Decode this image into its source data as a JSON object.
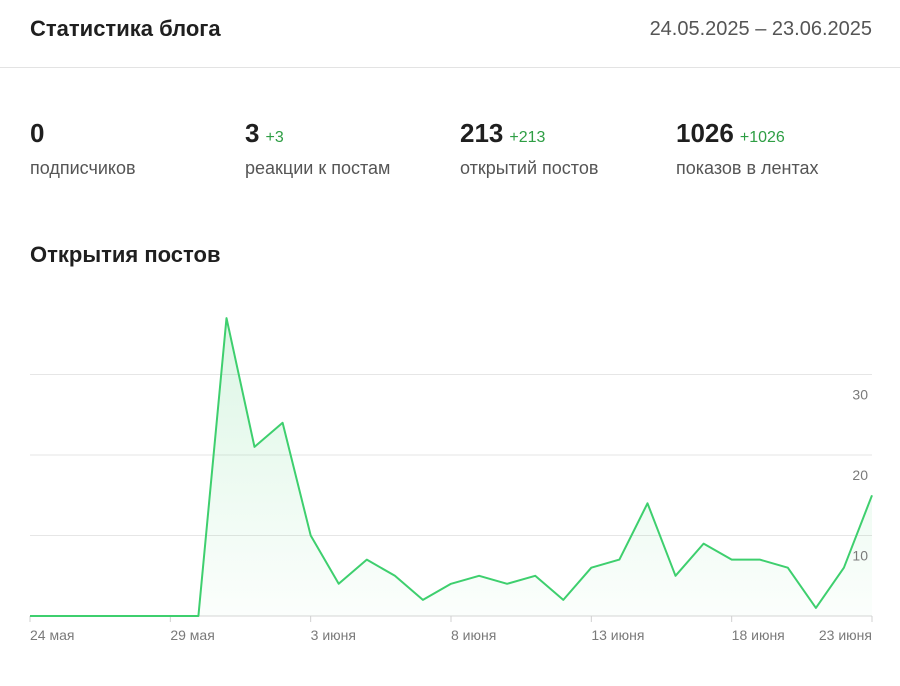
{
  "header": {
    "title": "Статистика блога",
    "date_range": "24.05.2025 – 23.06.2025"
  },
  "stats": [
    {
      "value": "0",
      "delta": "",
      "label": "подписчиков"
    },
    {
      "value": "3",
      "delta": "+3",
      "label": "реакции к постам"
    },
    {
      "value": "213",
      "delta": "+213",
      "label": "открытий постов"
    },
    {
      "value": "1026",
      "delta": "+1026",
      "label": "показов в лентах"
    }
  ],
  "section": {
    "title": "Открытия постов"
  },
  "colors": {
    "line": "#3ecf6e",
    "accent": "#2e9e44"
  },
  "chart_data": {
    "type": "area",
    "x": [
      "24.05",
      "25.05",
      "26.05",
      "27.05",
      "28.05",
      "29.05",
      "30.05",
      "31.05",
      "01.06",
      "02.06",
      "03.06",
      "04.06",
      "05.06",
      "06.06",
      "07.06",
      "08.06",
      "09.06",
      "10.06",
      "11.06",
      "12.06",
      "13.06",
      "14.06",
      "15.06",
      "16.06",
      "17.06",
      "18.06",
      "19.06",
      "20.06",
      "21.06",
      "22.06",
      "23.06"
    ],
    "values": [
      0,
      0,
      0,
      0,
      0,
      0,
      0,
      37,
      21,
      24,
      10,
      4,
      7,
      5,
      2,
      4,
      5,
      4,
      5,
      2,
      6,
      7,
      14,
      5,
      9,
      7,
      7,
      6,
      1,
      6,
      15
    ],
    "x_ticks": [
      {
        "index": 0,
        "label": "24 мая"
      },
      {
        "index": 5,
        "label": "29 мая"
      },
      {
        "index": 10,
        "label": "3 июня"
      },
      {
        "index": 15,
        "label": "8 июня"
      },
      {
        "index": 20,
        "label": "13 июня"
      },
      {
        "index": 25,
        "label": "18 июня"
      },
      {
        "index": 30,
        "label": "23 июня"
      }
    ],
    "y_ticks": [
      10,
      20,
      30
    ],
    "ylim": [
      0,
      40
    ],
    "grid": true
  }
}
